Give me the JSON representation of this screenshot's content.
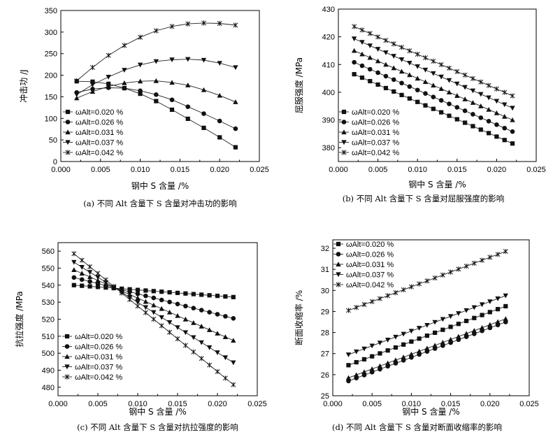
{
  "chart_data": [
    {
      "type": "line",
      "panel": "a",
      "caption": "(a) 不同 Alt 含量下 S 含量对冲击功的影响",
      "xlabel": "钢中 S 含量 /%",
      "ylabel": "冲击功 /J",
      "xlim": [
        0.0,
        0.025
      ],
      "ylim": [
        0,
        350
      ],
      "xticks": [
        "0.000",
        "0.005",
        "0.010",
        "0.015",
        "0.020",
        "0.025"
      ],
      "yticks": [
        "0",
        "50",
        "100",
        "150",
        "200",
        "250",
        "300",
        "350"
      ],
      "legend_position": "bottom-left",
      "grid": false,
      "x": [
        0.002,
        0.004,
        0.006,
        0.008,
        0.01,
        0.012,
        0.014,
        0.016,
        0.018,
        0.02,
        0.022
      ],
      "series": [
        {
          "name": "ωAlt=0.020 %",
          "marker": "square",
          "values": [
            186,
            185,
            180,
            170,
            157,
            140,
            120,
            99,
            78,
            56,
            33
          ]
        },
        {
          "name": "ωAlt=0.026 %",
          "marker": "circle",
          "values": [
            160,
            168,
            171,
            170,
            164,
            155,
            143,
            127,
            111,
            94,
            76
          ]
        },
        {
          "name": "ωAlt=0.031 %",
          "marker": "triangle-up",
          "values": [
            147,
            162,
            174,
            182,
            186,
            187,
            183,
            177,
            166,
            153,
            138
          ]
        },
        {
          "name": "ωAlt=0.037 %",
          "marker": "triangle-down",
          "values": [
            155,
            178,
            196,
            212,
            224,
            232,
            236,
            237,
            235,
            228,
            218
          ]
        },
        {
          "name": "ωAlt=0.042 %",
          "marker": "star",
          "values": [
            187,
            218,
            246,
            269,
            288,
            303,
            313,
            319,
            321,
            320,
            316
          ]
        }
      ]
    },
    {
      "type": "line",
      "panel": "b",
      "caption": "(b) 不同 Alt 含量下 S 含量对屈服强度的影响",
      "xlabel": "钢中 S 含量 /%",
      "ylabel": "屈服强度 /MPa",
      "xlim": [
        0.0,
        0.025
      ],
      "ylim": [
        375,
        430
      ],
      "xticks": [
        "0.000",
        "0.005",
        "0.010",
        "0.015",
        "0.020",
        "0.025"
      ],
      "yticks": [
        "380",
        "390",
        "400",
        "410",
        "420",
        "430"
      ],
      "legend_position": "bottom-left",
      "grid": false,
      "x": [
        0.002,
        0.022
      ],
      "series": [
        {
          "name": "ωAlt=0.020 %",
          "marker": "square",
          "values": [
            406.5,
            381.5
          ]
        },
        {
          "name": "ωAlt=0.026 %",
          "marker": "circle",
          "values": [
            410.8,
            385.8
          ]
        },
        {
          "name": "ωAlt=0.031 %",
          "marker": "triangle-up",
          "values": [
            415.0,
            390.0
          ]
        },
        {
          "name": "ωAlt=0.037 %",
          "marker": "triangle-down",
          "values": [
            419.3,
            394.3
          ]
        },
        {
          "name": "ωAlt=0.042 %",
          "marker": "star",
          "values": [
            423.7,
            398.7
          ]
        }
      ]
    },
    {
      "type": "line",
      "panel": "c",
      "caption": "(c) 不同 Alt 含量下 S 含量对抗拉强度的影响",
      "xlabel": "钢中 S 含量 /%",
      "ylabel": "抗拉强度 /MPa",
      "xlim": [
        0.0,
        0.025
      ],
      "ylim": [
        475,
        565
      ],
      "xticks": [
        "0.000",
        "0.005",
        "0.010",
        "0.015",
        "0.020",
        "0.025"
      ],
      "yticks": [
        "480",
        "490",
        "500",
        "510",
        "520",
        "530",
        "540",
        "550",
        "560"
      ],
      "legend_position": "bottom-left",
      "grid": false,
      "x": [
        0.002,
        0.022
      ],
      "series": [
        {
          "name": "ωAlt=0.020 %",
          "marker": "square",
          "values": [
            540.0,
            533.0
          ]
        },
        {
          "name": "ωAlt=0.026 %",
          "marker": "circle",
          "values": [
            544.5,
            520.5
          ]
        },
        {
          "name": "ωAlt=0.031 %",
          "marker": "triangle-up",
          "values": [
            549.0,
            507.5
          ]
        },
        {
          "name": "ωAlt=0.037 %",
          "marker": "triangle-down",
          "values": [
            553.5,
            494.5
          ]
        },
        {
          "name": "ωAlt=0.042 %",
          "marker": "star",
          "values": [
            558.5,
            481.5
          ]
        }
      ]
    },
    {
      "type": "line",
      "panel": "d",
      "caption": "(d) 不同 Alt 含量下 S 含量对断面收缩率的影响",
      "xlabel": "钢中 S 含量 /%",
      "ylabel": "断面收缩率 /%",
      "xlim": [
        0.0,
        0.025
      ],
      "ylim": [
        25,
        32.4
      ],
      "xticks": [
        "0.000",
        "0.005",
        "0.010",
        "0.015",
        "0.020",
        "0.025"
      ],
      "yticks": [
        "25",
        "26",
        "27",
        "28",
        "29",
        "30",
        "31",
        "32"
      ],
      "legend_position": "top-left",
      "grid": false,
      "x": [
        0.002,
        0.022
      ],
      "series": [
        {
          "name": "ωAlt=0.020 %",
          "marker": "square",
          "values": [
            26.45,
            29.25
          ]
        },
        {
          "name": "ωAlt=0.026 %",
          "marker": "circle",
          "values": [
            25.7,
            28.5
          ]
        },
        {
          "name": "ωAlt=0.031 %",
          "marker": "triangle-up",
          "values": [
            25.85,
            28.65
          ]
        },
        {
          "name": "ωAlt=0.037 %",
          "marker": "triangle-down",
          "values": [
            26.95,
            29.75
          ]
        },
        {
          "name": "ωAlt=0.042 %",
          "marker": "star",
          "values": [
            29.05,
            31.85
          ]
        }
      ]
    }
  ]
}
